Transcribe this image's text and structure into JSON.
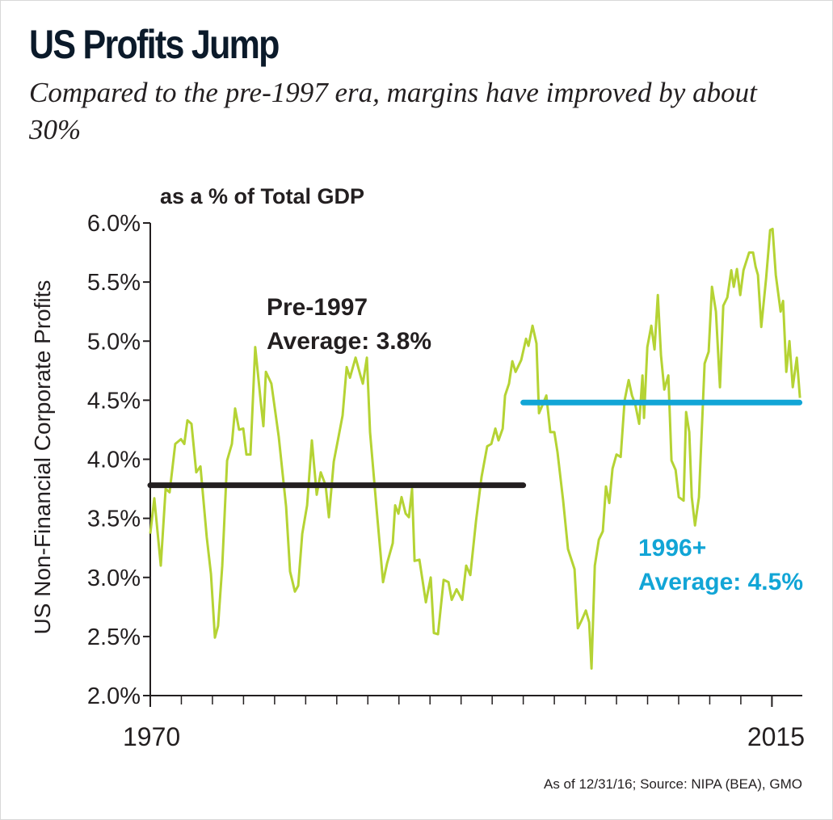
{
  "chart_data": {
    "type": "line",
    "title": "US Profits Jump",
    "subtitle": "Compared to the pre-1997 era, margins have improved by about 30%",
    "units_label": "as a % of Total GDP",
    "y_axis_label": "US Non-Financial Corporate Profits",
    "source": "As of 12/31/16; Source: NIPA (BEA), GMO",
    "xlim": [
      1970,
      2017.2
    ],
    "ylim": [
      2.0,
      6.0
    ],
    "xticks": [
      1970,
      2015
    ],
    "x_minor_ticks": [
      1970,
      1972.25,
      1974.5,
      1976.75,
      1979,
      1981.25,
      1983.5,
      1985.75,
      1988,
      1990.25,
      1992.5,
      1994.75,
      1997,
      1999.25,
      2001.5,
      2003.75,
      2006,
      2008.25,
      2010.5,
      2012.75,
      2015
    ],
    "yticks": [
      {
        "value": 2.0,
        "label": "2.0%"
      },
      {
        "value": 2.5,
        "label": "2.5%"
      },
      {
        "value": 3.0,
        "label": "3.0%"
      },
      {
        "value": 3.5,
        "label": "3.5%"
      },
      {
        "value": 4.0,
        "label": "4.0%"
      },
      {
        "value": 4.5,
        "label": "4.5%"
      },
      {
        "value": 5.0,
        "label": "5.0%"
      },
      {
        "value": 5.5,
        "label": "5.5%"
      },
      {
        "value": 6.0,
        "label": "6.0%"
      }
    ],
    "color": "#b5d334",
    "x": [
      1970.0,
      1970.29,
      1970.76,
      1971.11,
      1971.4,
      1971.81,
      1972.22,
      1972.46,
      1972.69,
      1972.98,
      1973.33,
      1973.63,
      1974.09,
      1974.39,
      1974.68,
      1974.91,
      1975.21,
      1975.56,
      1975.91,
      1976.14,
      1976.43,
      1976.73,
      1976.96,
      1977.25,
      1977.6,
      1978.01,
      1978.19,
      1978.37,
      1978.77,
      1979.3,
      1979.83,
      1980.12,
      1980.47,
      1980.71,
      1981.0,
      1981.35,
      1981.7,
      1982.05,
      1982.34,
      1982.69,
      1982.93,
      1983.28,
      1983.63,
      1983.92,
      1984.22,
      1984.45,
      1984.86,
      1985.21,
      1985.39,
      1985.68,
      1985.91,
      1986.38,
      1986.85,
      1987.14,
      1987.55,
      1987.73,
      1987.96,
      1988.19,
      1988.49,
      1988.72,
      1988.95,
      1989.13,
      1989.48,
      1989.95,
      1990.3,
      1990.53,
      1990.83,
      1991.24,
      1991.59,
      1991.82,
      1992.17,
      1992.58,
      1992.87,
      1993.17,
      1993.58,
      1993.98,
      1994.39,
      1994.69,
      1994.98,
      1995.21,
      1995.51,
      1995.68,
      1995.97,
      1996.21,
      1996.44,
      1996.85,
      1997.2,
      1997.38,
      1997.67,
      1997.96,
      1998.14,
      1998.43,
      1998.67,
      1998.96,
      1999.25,
      1999.48,
      1999.89,
      2000.24,
      2000.71,
      2000.95,
      2001.24,
      2001.53,
      2001.77,
      2001.94,
      2002.18,
      2002.47,
      2002.76,
      2002.99,
      2003.23,
      2003.46,
      2003.75,
      2004.05,
      2004.34,
      2004.63,
      2004.87,
      2005.1,
      2005.39,
      2005.63,
      2005.74,
      2005.98,
      2006.27,
      2006.5,
      2006.74,
      2006.97,
      2007.21,
      2007.5,
      2007.73,
      2008.03,
      2008.26,
      2008.61,
      2008.79,
      2009.02,
      2009.2,
      2009.43,
      2009.72,
      2010.13,
      2010.42,
      2010.66,
      2010.95,
      2011.24,
      2011.48,
      2011.77,
      2012.06,
      2012.24,
      2012.47,
      2012.71,
      2012.94,
      2013.35,
      2013.64,
      2013.82,
      2013.99,
      2014.23,
      2014.58,
      2014.87,
      2015.05,
      2015.28,
      2015.63,
      2015.81,
      2016.04,
      2016.27,
      2016.51,
      2016.8,
      2017.03
    ],
    "values": [
      3.37,
      3.67,
      3.1,
      3.75,
      3.72,
      4.13,
      4.17,
      4.13,
      4.33,
      4.3,
      3.89,
      3.94,
      3.34,
      3.03,
      2.49,
      2.59,
      3.1,
      3.99,
      4.13,
      4.43,
      4.25,
      4.26,
      4.04,
      4.04,
      4.95,
      4.47,
      4.28,
      4.74,
      4.64,
      4.19,
      3.6,
      3.05,
      2.88,
      2.93,
      3.37,
      3.61,
      4.16,
      3.7,
      3.89,
      3.78,
      3.51,
      3.98,
      4.19,
      4.37,
      4.78,
      4.69,
      4.86,
      4.71,
      4.64,
      4.86,
      4.23,
      3.58,
      2.96,
      3.12,
      3.29,
      3.61,
      3.54,
      3.68,
      3.54,
      3.51,
      3.75,
      3.14,
      3.15,
      2.79,
      3.0,
      2.53,
      2.52,
      2.98,
      2.96,
      2.81,
      2.9,
      2.81,
      3.1,
      3.02,
      3.48,
      3.85,
      4.11,
      4.13,
      4.26,
      4.16,
      4.26,
      4.54,
      4.64,
      4.83,
      4.74,
      4.84,
      5.02,
      4.96,
      5.13,
      4.98,
      4.39,
      4.47,
      4.54,
      4.23,
      4.23,
      4.06,
      3.65,
      3.24,
      3.07,
      2.57,
      2.64,
      2.72,
      2.62,
      2.23,
      3.1,
      3.32,
      3.39,
      3.77,
      3.63,
      3.92,
      4.04,
      4.02,
      4.5,
      4.67,
      4.54,
      4.47,
      4.3,
      4.71,
      4.35,
      4.95,
      5.13,
      4.93,
      5.39,
      4.88,
      4.59,
      4.71,
      3.99,
      3.91,
      3.68,
      3.65,
      4.4,
      4.23,
      3.68,
      3.44,
      3.68,
      4.81,
      4.91,
      5.46,
      5.25,
      4.61,
      5.3,
      5.37,
      5.6,
      5.46,
      5.61,
      5.39,
      5.6,
      5.75,
      5.75,
      5.63,
      5.56,
      5.12,
      5.53,
      5.94,
      5.95,
      5.56,
      5.25,
      5.34,
      4.74,
      5.0,
      4.61,
      4.86,
      4.52
    ],
    "reference_lines": [
      {
        "name": "Pre-1997",
        "label": "Average: 3.8%",
        "value": 3.78,
        "start": 1970,
        "end": 1997,
        "color": "#231f20"
      },
      {
        "name": "1996+",
        "label": "Average: 4.5%",
        "value": 4.48,
        "start": 1997,
        "end": 2017,
        "color": "#12a5d6"
      }
    ]
  }
}
